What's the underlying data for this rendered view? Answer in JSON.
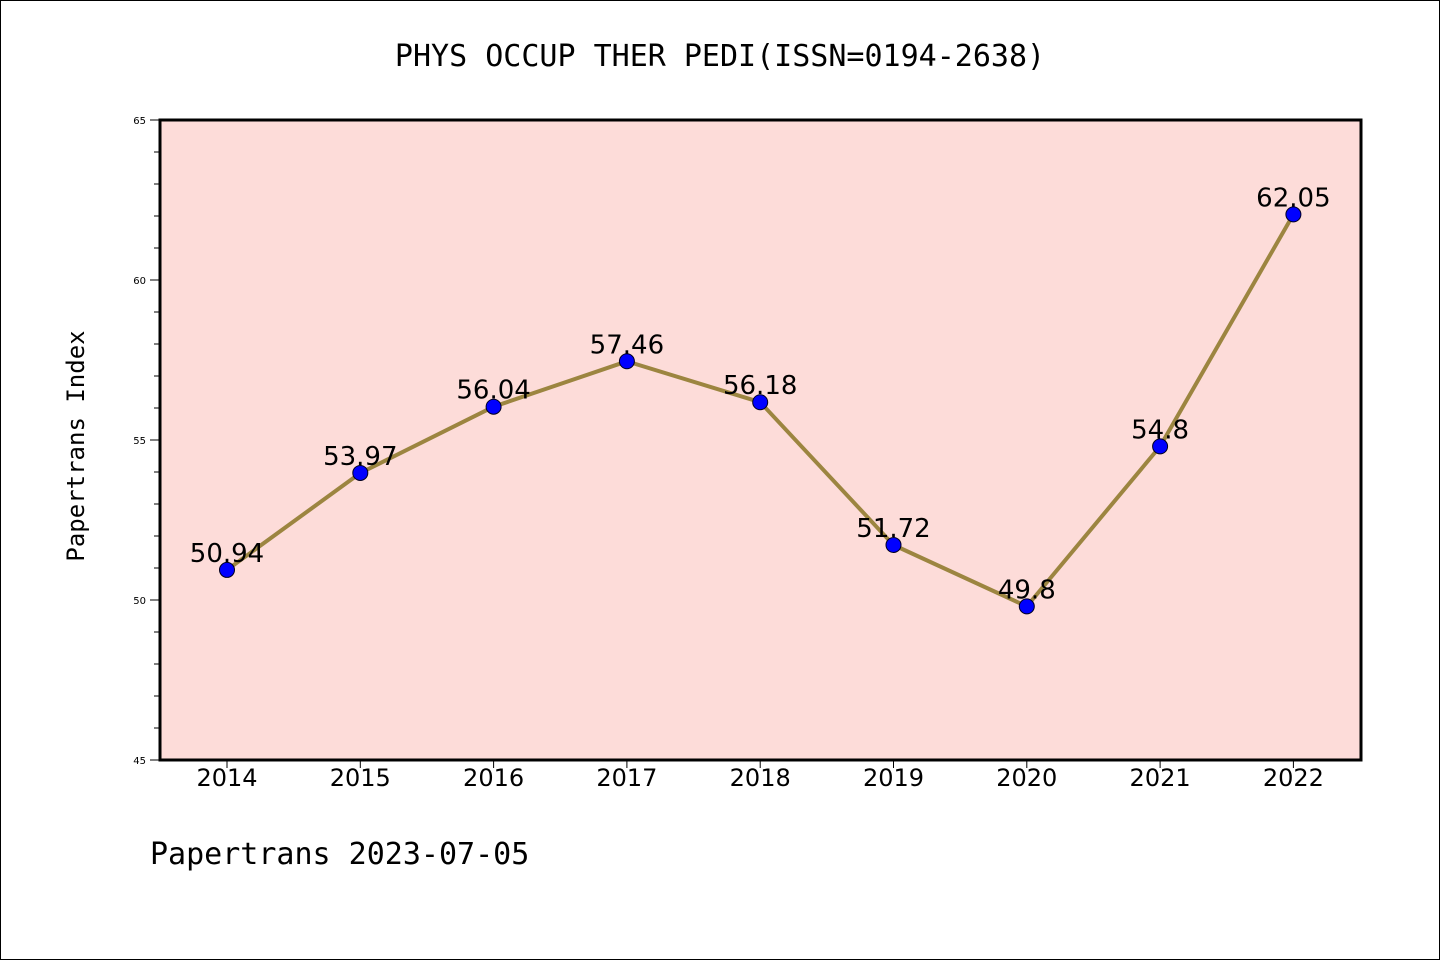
{
  "chart_data": {
    "type": "line",
    "title": "PHYS OCCUP THER PEDI(ISSN=0194-2638)",
    "ylabel": "Papertrans Index",
    "xlabel": "",
    "footer": "Papertrans 2023-07-05",
    "categories": [
      "2014",
      "2015",
      "2016",
      "2017",
      "2018",
      "2019",
      "2020",
      "2021",
      "2022"
    ],
    "series": [
      {
        "values": [
          50.94,
          53.97,
          56.04,
          57.46,
          56.18,
          51.72,
          49.8,
          54.8,
          62.05
        ],
        "labels": [
          "50.94",
          "53.97",
          "56.04",
          "57.46",
          "56.18",
          "51.72",
          "49.8",
          "54.8",
          "62.05"
        ]
      }
    ],
    "ylim": [
      45,
      65
    ],
    "yticks": [
      "45",
      "50",
      "55",
      "60",
      "65"
    ],
    "grid": false,
    "colors": {
      "plot_background": "#fddcd9",
      "line": "#9c8540",
      "marker": "#0000ff"
    }
  }
}
